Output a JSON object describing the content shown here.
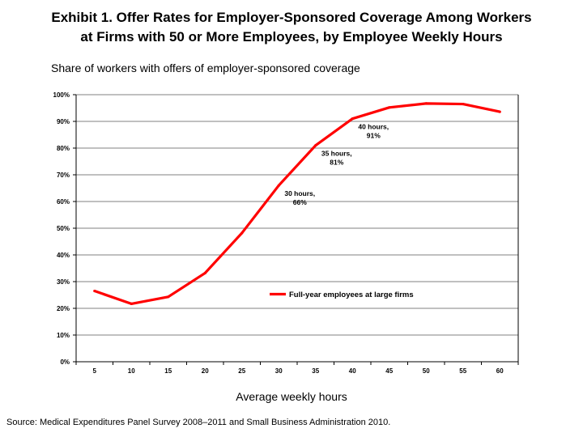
{
  "title_lines": [
    "Exhibit 1. Offer Rates for Employer-Sponsored Coverage Among Workers",
    "at Firms with 50 or More Employees, by Employee Weekly Hours"
  ],
  "colors": {
    "line": "#ff0000",
    "grid": "#808080",
    "axis": "#000000"
  },
  "chart_data": {
    "type": "line",
    "title": "Exhibit 1. Offer Rates for Employer-Sponsored Coverage Among Workers at Firms with 50 or More Employees, by Employee Weekly Hours",
    "ylabel": "Share of workers with offers of employer-sponsored coverage",
    "xlabel": "Average weekly hours",
    "x": [
      5,
      10,
      15,
      20,
      25,
      30,
      35,
      40,
      45,
      50,
      55,
      60
    ],
    "xlim": [
      2.5,
      62.5
    ],
    "ylim": [
      0,
      100
    ],
    "y_ticks": [
      "0%",
      "10%",
      "20%",
      "30%",
      "40%",
      "50%",
      "60%",
      "70%",
      "80%",
      "90%",
      "100%"
    ],
    "x_ticks": [
      "5",
      "10",
      "15",
      "20",
      "25",
      "30",
      "35",
      "40",
      "45",
      "50",
      "55",
      "60"
    ],
    "grid": "horizontal",
    "legend_position": "center-right",
    "series": [
      {
        "name": "Full-year employees at large firms",
        "values": [
          26.5,
          21.7,
          24.3,
          33.2,
          48.2,
          66,
          81,
          91,
          95.2,
          96.7,
          96.5,
          93.6
        ]
      }
    ],
    "annotations": [
      {
        "x": 30,
        "y": 66,
        "line1": "30 hours,",
        "line2": "66%"
      },
      {
        "x": 35,
        "y": 81,
        "line1": "35 hours,",
        "line2": "81%"
      },
      {
        "x": 40,
        "y": 91,
        "line1": "40 hours,",
        "line2": "91%"
      }
    ]
  },
  "source": "Source: Medical Expenditures Panel Survey 2008–2011 and Small Business Administration 2010."
}
